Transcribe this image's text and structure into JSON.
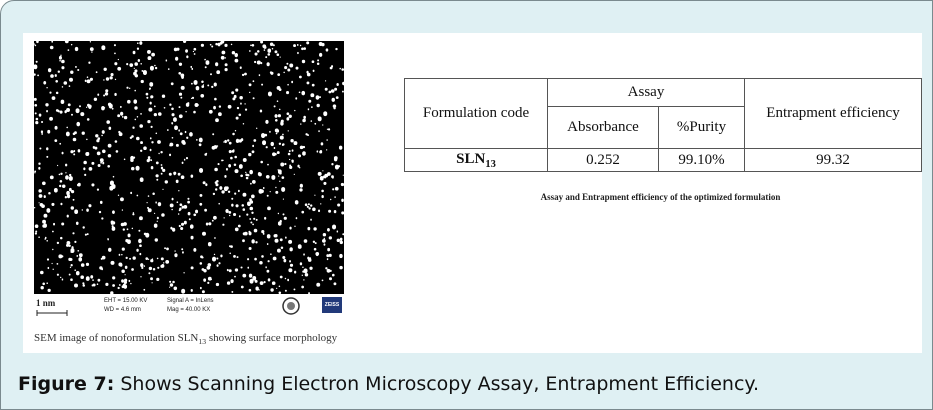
{
  "figure": {
    "sem": {
      "scale": "1 nm",
      "eht": "EHT = 15.00 KV",
      "wd": "WD = 4.6 mm",
      "signal": "Signal A = InLens",
      "mag": "Mag = 40.00 KX",
      "logo": "ZEISS",
      "caption": {
        "before": "SEM image of nonoformulation SLN",
        "sub": "13",
        "after": " showing surface morphology"
      }
    },
    "table": {
      "header": {
        "formulation": "Formulation code",
        "assay": "Assay",
        "absorbance": "Absorbance",
        "purity": "%Purity",
        "efficiency": "Entrapment efficiency"
      },
      "row": {
        "code": "SLN",
        "code_sub": "13",
        "absorbance": "0.252",
        "purity": "99.10%",
        "efficiency": "99.32"
      },
      "caption": "Assay and Entrapment efficiency of the optimized formulation"
    },
    "label": "Figure 7:",
    "caption": " Shows Scanning Electron Microscopy Assay, Entrapment Efficiency."
  }
}
